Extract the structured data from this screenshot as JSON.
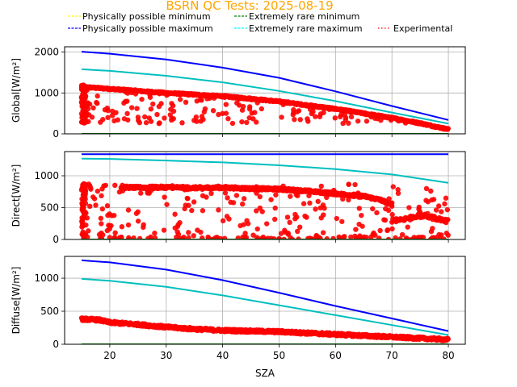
{
  "chart_data": {
    "type": "scatter",
    "title": "BSRN QC Tests: 2025-08-19",
    "title_color": "#FFA500",
    "legend": {
      "placement": "top",
      "entries": [
        {
          "label": "Physically possible minimum",
          "color": "#FFFF00",
          "style": "dashed"
        },
        {
          "label": "Extremely rare minimum",
          "color": "#008000",
          "style": "dashed"
        },
        {
          "label": "Physically possible maximum",
          "color": "#0000FF",
          "style": "dashed"
        },
        {
          "label": "Extremely rare maximum",
          "color": "#00FFFF",
          "style": "dashed"
        },
        {
          "label": "Experimental",
          "color": "#FF0000",
          "style": "dotted"
        }
      ]
    },
    "xlabel": "SZA",
    "xlim": [
      12,
      83
    ],
    "xticks": [
      20,
      30,
      40,
      50,
      60,
      70,
      80
    ],
    "grid": true,
    "panels": [
      {
        "name": "Global",
        "ylabel": "Global[W/m²]",
        "ylim": [
          0,
          2130
        ],
        "yticks": [
          0,
          1000,
          2000
        ],
        "series": [
          {
            "name": "Physically possible maximum",
            "color": "#0000FF",
            "x": [
              15,
              20,
              30,
              40,
              50,
              60,
              70,
              80
            ],
            "y": [
              2010,
              1960,
              1820,
              1620,
              1370,
              1040,
              680,
              340
            ]
          },
          {
            "name": "Extremely rare maximum",
            "color": "#00BFBF",
            "x": [
              15,
              20,
              30,
              40,
              50,
              60,
              70,
              80
            ],
            "y": [
              1580,
              1540,
              1420,
              1260,
              1050,
              800,
              520,
              250
            ]
          },
          {
            "name": "Physically possible minimum",
            "color": "#FFFF00",
            "x": [
              15,
              80
            ],
            "y": [
              -4,
              -4
            ]
          },
          {
            "name": "Extremely rare minimum",
            "color": "#008000",
            "x": [
              15,
              80
            ],
            "y": [
              0,
              0
            ]
          }
        ],
        "experimental": {
          "band": {
            "x": [
              15,
              20,
              25,
              30,
              35,
              40,
              45,
              50,
              55,
              60,
              65,
              70,
              75,
              80
            ],
            "y": [
              1150,
              1100,
              1050,
              1000,
              960,
              920,
              860,
              790,
              700,
              610,
              500,
              390,
              260,
              110
            ]
          },
          "scatter_range": [
            250,
            1250
          ],
          "low_cluster_x": [
            15,
            25
          ]
        }
      },
      {
        "name": "Direct",
        "ylabel": "Direct[W/m²]",
        "ylim": [
          0,
          1380
        ],
        "yticks": [
          0,
          500,
          1000
        ],
        "series": [
          {
            "name": "Physically possible maximum",
            "color": "#0000FF",
            "x": [
              15,
              80
            ],
            "y": [
              1340,
              1340
            ]
          },
          {
            "name": "Extremely rare maximum",
            "color": "#00BFBF",
            "x": [
              15,
              20,
              30,
              40,
              50,
              60,
              70,
              80
            ],
            "y": [
              1270,
              1265,
              1240,
              1210,
              1165,
              1105,
              1020,
              890
            ]
          },
          {
            "name": "Physically possible minimum",
            "color": "#FFFF00",
            "x": [
              15,
              80
            ],
            "y": [
              -4,
              -4
            ]
          },
          {
            "name": "Extremely rare minimum",
            "color": "#008000",
            "x": [
              15,
              80
            ],
            "y": [
              0,
              0
            ]
          }
        ],
        "experimental": {
          "band": {
            "x": [
              22,
              25,
              30,
              35,
              40,
              45,
              50,
              55,
              60,
              65,
              68,
              70
            ],
            "y": [
              820,
              815,
              820,
              810,
              815,
              800,
              790,
              760,
              720,
              680,
              620,
              540
            ]
          },
          "tail": {
            "x": [
              70,
              72,
              75,
              78,
              80
            ],
            "y": [
              300,
              320,
              380,
              330,
              280
            ]
          },
          "scatter_range": [
            0,
            880
          ]
        }
      },
      {
        "name": "Diffuse",
        "ylabel": "Diffuse[W/m²]",
        "ylim": [
          0,
          1330
        ],
        "yticks": [
          0,
          500,
          1000
        ],
        "series": [
          {
            "name": "Physically possible maximum",
            "color": "#0000FF",
            "x": [
              15,
              20,
              30,
              40,
              50,
              60,
              70,
              80
            ],
            "y": [
              1270,
              1240,
              1130,
              970,
              780,
              580,
              390,
              200
            ]
          },
          {
            "name": "Extremely rare maximum",
            "color": "#00BFBF",
            "x": [
              15,
              20,
              30,
              40,
              50,
              60,
              70,
              80
            ],
            "y": [
              990,
              960,
              870,
              740,
              590,
              440,
              290,
              140
            ]
          },
          {
            "name": "Physically possible minimum",
            "color": "#FFFF00",
            "x": [
              15,
              80
            ],
            "y": [
              -4,
              -4
            ]
          },
          {
            "name": "Extremely rare minimum",
            "color": "#008000",
            "x": [
              15,
              80
            ],
            "y": [
              0,
              0
            ]
          }
        ],
        "experimental": {
          "band": {
            "x": [
              15,
              18,
              20,
              25,
              30,
              35,
              40,
              45,
              50,
              55,
              60,
              65,
              70,
              75,
              80
            ],
            "y": [
              380,
              370,
              330,
              300,
              260,
              230,
              210,
              200,
              190,
              170,
              150,
              130,
              110,
              90,
              70
            ]
          }
        }
      }
    ]
  }
}
